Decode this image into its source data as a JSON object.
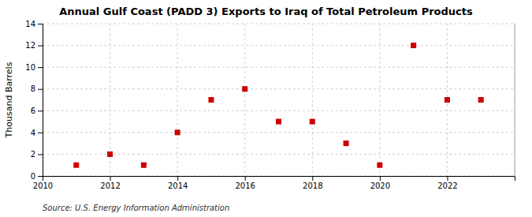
{
  "chart_data": {
    "type": "scatter",
    "title": "Annual Gulf Coast (PADD 3) Exports to Iraq of Total Petroleum Products",
    "ylabel": "Thousand Barrels",
    "source": "Source: U.S. Energy Information Administration",
    "x": [
      2011,
      2012,
      2013,
      2014,
      2015,
      2016,
      2017,
      2018,
      2019,
      2020,
      2021,
      2022,
      2023
    ],
    "values": [
      1,
      2,
      1,
      4,
      7,
      8,
      5,
      5,
      3,
      1,
      12,
      7,
      7
    ],
    "color": "#cc0000",
    "marker": "square",
    "xlim": [
      2010,
      2024
    ],
    "ylim": [
      0,
      14
    ],
    "xticks": [
      2010,
      2012,
      2014,
      2016,
      2018,
      2020,
      2022
    ],
    "yticks": [
      0,
      2,
      4,
      6,
      8,
      10,
      12,
      14
    ],
    "grid": true
  }
}
